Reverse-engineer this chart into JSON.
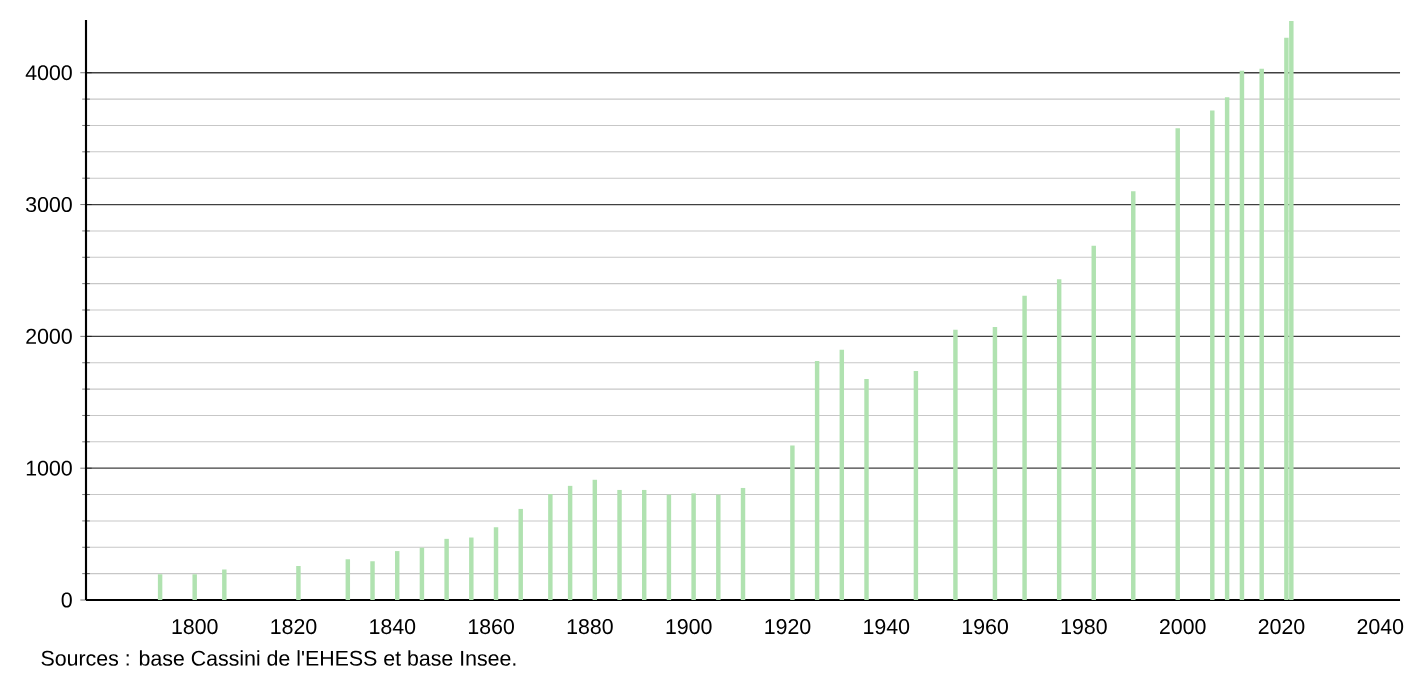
{
  "chart_data": {
    "type": "bar",
    "color": "#b0e2b0",
    "x": [
      1793,
      1800,
      1806,
      1821,
      1831,
      1836,
      1841,
      1846,
      1851,
      1856,
      1861,
      1866,
      1872,
      1876,
      1881,
      1886,
      1891,
      1896,
      1901,
      1906,
      1911,
      1921,
      1926,
      1931,
      1936,
      1946,
      1954,
      1962,
      1968,
      1975,
      1982,
      1990,
      1999,
      2006,
      2009,
      2012,
      2016,
      2021,
      2022
    ],
    "values": [
      196,
      195,
      232,
      258,
      309,
      294,
      371,
      397,
      464,
      474,
      552,
      691,
      804,
      866,
      912,
      835,
      835,
      799,
      809,
      799,
      850,
      1172,
      1813,
      1899,
      1677,
      1737,
      2051,
      2071,
      2308,
      2434,
      2687,
      3100,
      3578,
      3714,
      3814,
      4015,
      4030,
      4266,
      4392
    ],
    "xlim": [
      1778,
      2044
    ],
    "ylim": [
      0,
      4400
    ],
    "xticks": [
      1800,
      1820,
      1840,
      1860,
      1880,
      1900,
      1920,
      1940,
      1960,
      1980,
      2000,
      2020,
      2040
    ],
    "yticks": [
      0,
      1000,
      2000,
      3000,
      4000
    ],
    "grid": "y",
    "annotations": [
      "Sources : base Cassini de l'EHESS et base Insee."
    ]
  }
}
